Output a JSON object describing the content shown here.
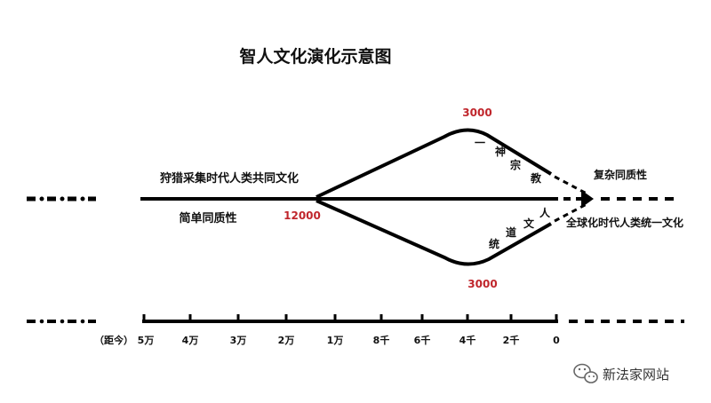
{
  "title": "智人文化演化示意图",
  "labels": {
    "hunter_gatherer": "狩猎采集时代人类共同文化",
    "simple_homogeneity": "简单同质性",
    "branch_year": "12000",
    "upper_peak_year": "3000",
    "lower_peak_year": "3000",
    "complex_homogeneity": "复杂同质性",
    "global_unified": "全球化时代人类统一文化",
    "upper_path_chars": [
      "一",
      "神",
      "宗",
      "教"
    ],
    "lower_path_chars": [
      "统",
      "道",
      "文",
      "人"
    ]
  },
  "timeline": {
    "prefix": "（距今）",
    "ticks": [
      "5万",
      "4万",
      "3万",
      "2万",
      "1万",
      "8千",
      "6千",
      "4千",
      "2千",
      "0"
    ]
  },
  "watermark": {
    "text": "新法家网站",
    "icon": "wechat-icon"
  },
  "colors": {
    "line": "#000000",
    "accent": "#c0262c"
  }
}
